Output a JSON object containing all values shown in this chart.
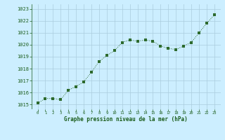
{
  "x": [
    0,
    1,
    2,
    3,
    4,
    5,
    6,
    7,
    8,
    9,
    10,
    11,
    12,
    13,
    14,
    15,
    16,
    17,
    18,
    19,
    20,
    21,
    22,
    23
  ],
  "y": [
    1015.1,
    1015.5,
    1015.5,
    1015.4,
    1016.2,
    1016.5,
    1016.9,
    1017.7,
    1018.6,
    1019.1,
    1019.5,
    1020.2,
    1020.4,
    1020.3,
    1020.4,
    1020.3,
    1019.9,
    1019.7,
    1019.6,
    1019.9,
    1020.2,
    1021.0,
    1021.8,
    1022.5
  ],
  "line_color": "#2d6a2d",
  "marker_color": "#2d6a2d",
  "bg_color": "#cceeff",
  "grid_color": "#aaccdd",
  "xlabel": "Graphe pression niveau de la mer (hPa)",
  "xlabel_color": "#1a5c1a",
  "tick_color": "#1a5c1a",
  "ylim": [
    1014.6,
    1023.4
  ],
  "yticks": [
    1015,
    1016,
    1017,
    1018,
    1019,
    1020,
    1021,
    1022,
    1023
  ],
  "xticks": [
    0,
    1,
    2,
    3,
    4,
    5,
    6,
    7,
    8,
    9,
    10,
    11,
    12,
    13,
    14,
    15,
    16,
    17,
    18,
    19,
    20,
    21,
    22,
    23
  ],
  "xtick_labels": [
    "0",
    "1",
    "2",
    "3",
    "4",
    "5",
    "6",
    "7",
    "8",
    "9",
    "10",
    "11",
    "12",
    "13",
    "14",
    "15",
    "16",
    "17",
    "18",
    "19",
    "20",
    "21",
    "22",
    "23"
  ]
}
